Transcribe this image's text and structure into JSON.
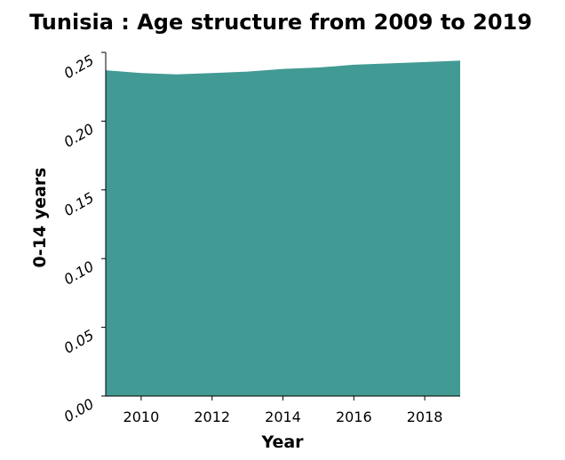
{
  "chart_data": {
    "type": "area",
    "title": "Tunisia : Age structure from 2009 to 2019",
    "xlabel": "Year",
    "ylabel": "0-14 years",
    "xlim": [
      2009,
      2019
    ],
    "ylim": [
      0,
      0.25
    ],
    "x_ticks": [
      2010,
      2012,
      2014,
      2016,
      2018
    ],
    "y_ticks": [
      "0.00",
      "0.05",
      "0.10",
      "0.15",
      "0.20",
      "0.25"
    ],
    "grid": false,
    "series": [
      {
        "color": "#429a94",
        "x": [
          2009,
          2010,
          2011,
          2012,
          2013,
          2014,
          2015,
          2016,
          2017,
          2018,
          2019
        ],
        "values": [
          0.237,
          0.235,
          0.234,
          0.235,
          0.236,
          0.238,
          0.239,
          0.241,
          0.242,
          0.243,
          0.244
        ]
      }
    ]
  }
}
